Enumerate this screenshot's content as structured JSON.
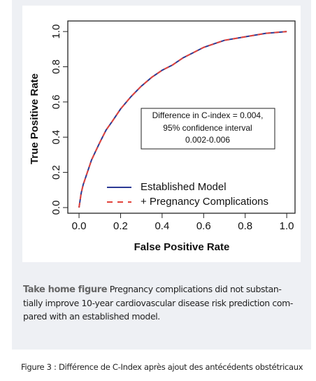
{
  "chart_data": {
    "type": "line",
    "x_label": "False Positive Rate",
    "y_label": "True Positive Rate",
    "x": [
      0,
      0.01,
      0.02,
      0.04,
      0.06,
      0.08,
      0.1,
      0.13,
      0.16,
      0.2,
      0.25,
      0.3,
      0.35,
      0.4,
      0.45,
      0.5,
      0.55,
      0.6,
      0.65,
      0.7,
      0.8,
      0.9,
      1
    ],
    "series": [
      {
        "name": "Established Model",
        "color": "#2c3a94",
        "dash": false,
        "values": [
          0,
          0.08,
          0.13,
          0.2,
          0.27,
          0.32,
          0.37,
          0.44,
          0.49,
          0.56,
          0.63,
          0.69,
          0.74,
          0.78,
          0.81,
          0.85,
          0.88,
          0.91,
          0.93,
          0.95,
          0.97,
          0.99,
          1
        ]
      },
      {
        "name": "+ Pregnancy Complications",
        "color": "#e2433b",
        "dash": true,
        "values": [
          0,
          0.08,
          0.13,
          0.2,
          0.27,
          0.32,
          0.37,
          0.44,
          0.49,
          0.56,
          0.63,
          0.69,
          0.74,
          0.78,
          0.81,
          0.85,
          0.88,
          0.91,
          0.93,
          0.95,
          0.97,
          0.99,
          1
        ]
      }
    ],
    "xlim": [
      -0.054,
      1.04
    ],
    "ylim": [
      -0.032,
      1.06
    ],
    "xticks": [
      {
        "value": 0,
        "label": "0.0"
      },
      0.2,
      0.4,
      0.6,
      0.8,
      {
        "value": 1,
        "label": "1.0"
      }
    ],
    "yticks": [
      {
        "value": 0,
        "label": "0.0"
      },
      0.2,
      0.4,
      0.6,
      0.8,
      {
        "value": 1,
        "label": "1.0"
      }
    ],
    "annotation": [
      "Difference in C-index = 0.004,",
      "95% confidence interval",
      "0.002-0.006"
    ],
    "legend": "lower right"
  },
  "caption": {
    "bold": "Take home figure",
    "lines": [
      "Pregnancy complications did not substan-",
      "tially improve 10-year cardiovascular disease risk prediction com-",
      "pared with an established model."
    ]
  },
  "figure_caption": "Figure 3 : Différence de C-Index après ajout des antécédents obstétricaux"
}
